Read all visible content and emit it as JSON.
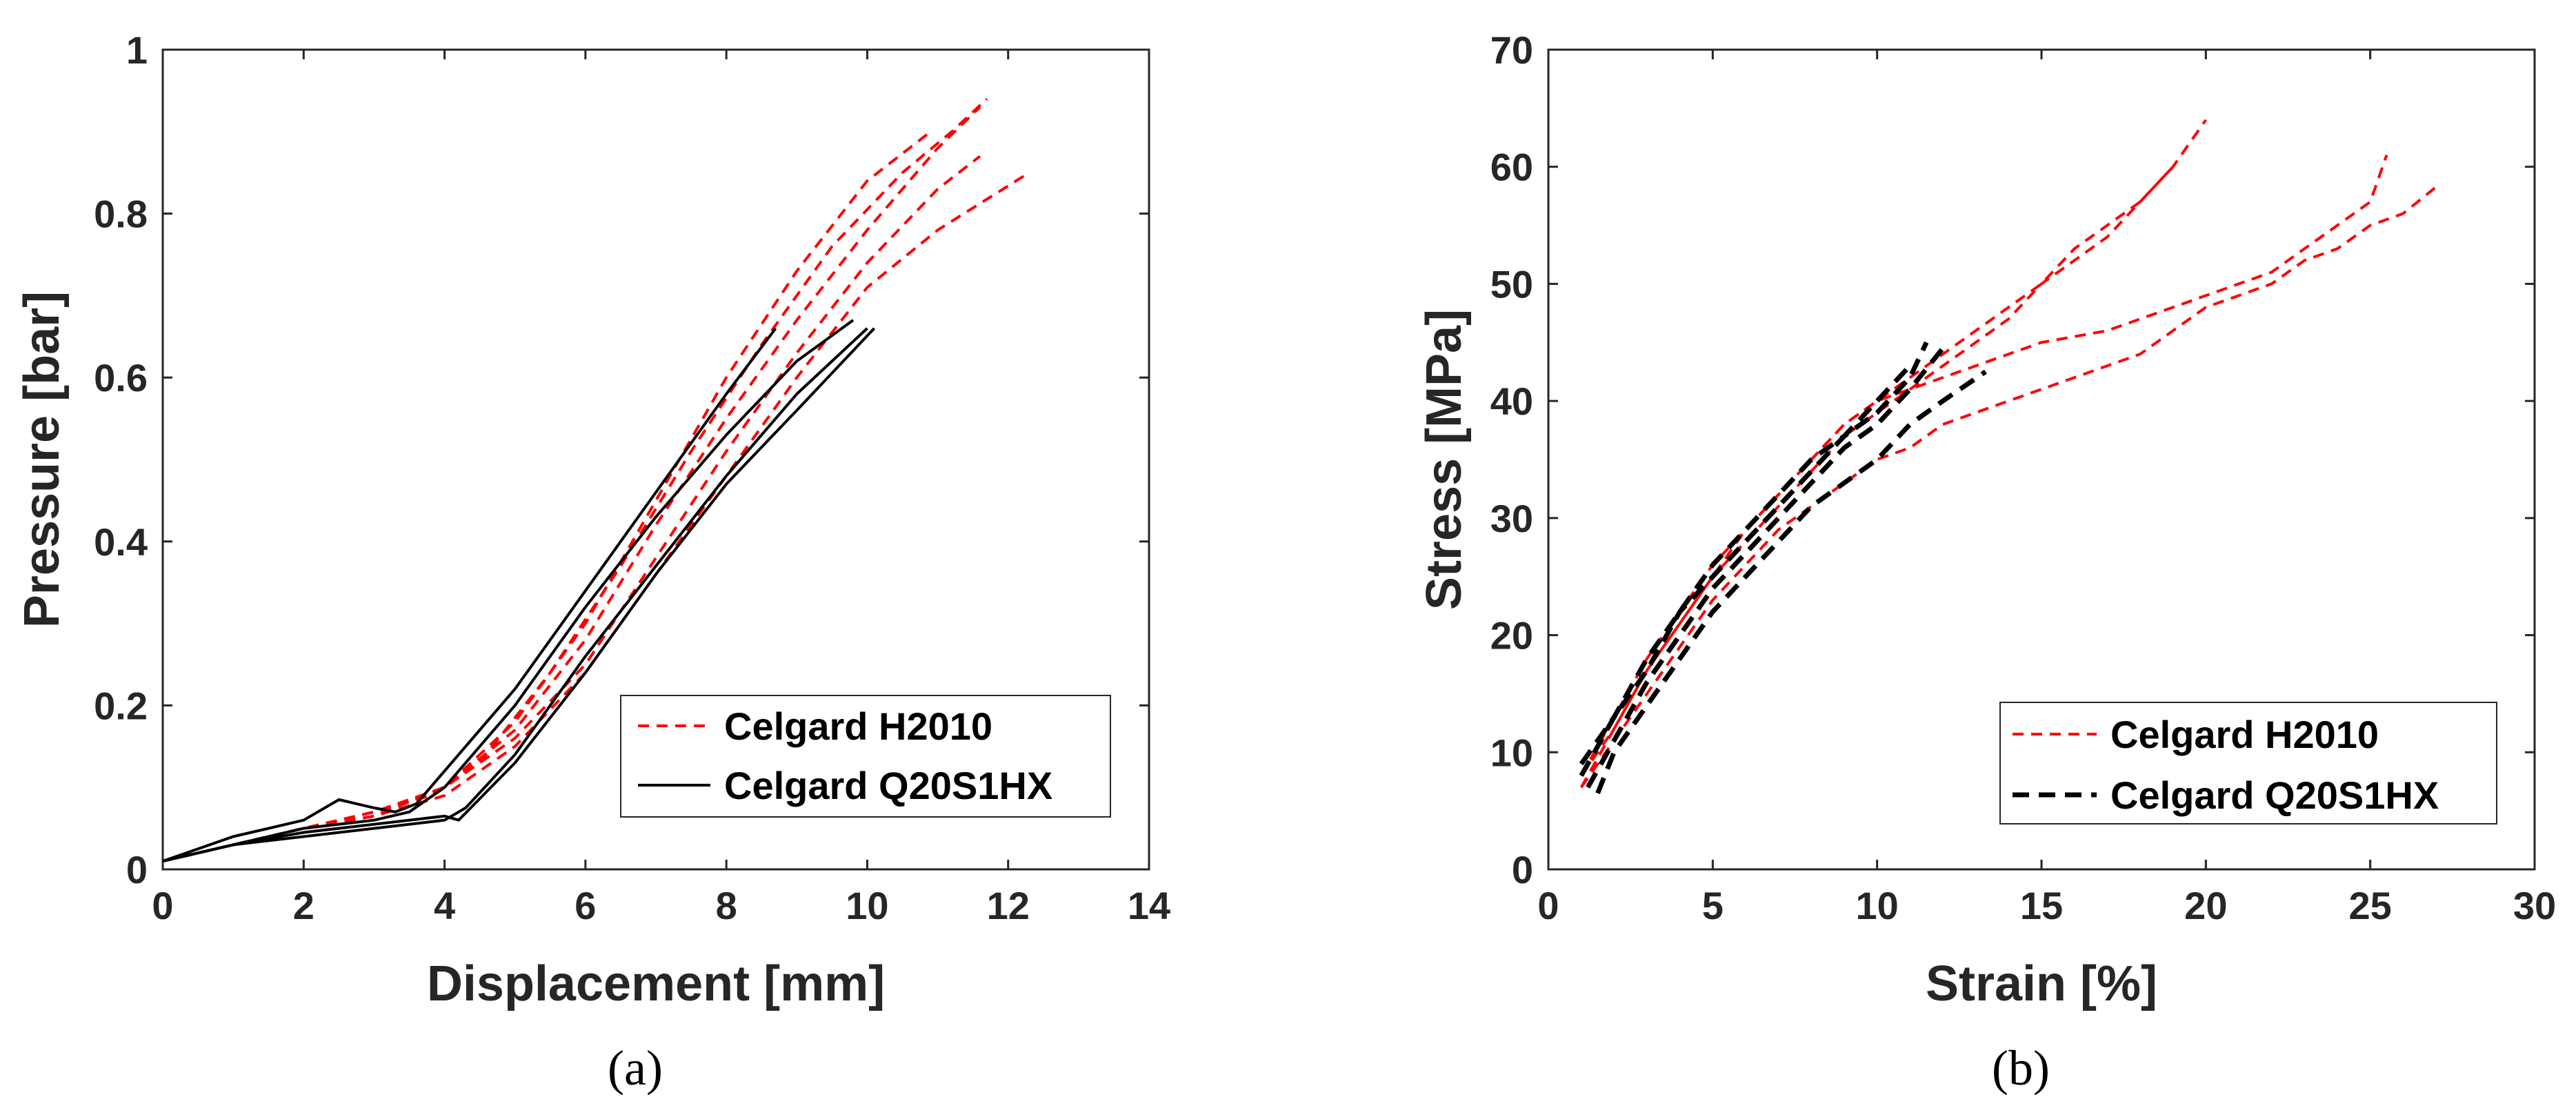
{
  "colors": {
    "h2010": "#ff0000",
    "q20": "#000000"
  },
  "chart_data": [
    {
      "type": "line",
      "panel_label": "(a)",
      "xlabel": "Displacement [mm]",
      "ylabel": "Pressure [bar]",
      "xlim": [
        0,
        14
      ],
      "ylim": [
        0,
        1
      ],
      "xticks": [
        "0",
        "2",
        "4",
        "6",
        "8",
        "10",
        "12",
        "14"
      ],
      "yticks": [
        "0",
        "0.2",
        "0.4",
        "0.6",
        "0.8",
        "1"
      ],
      "legend": {
        "position": "lower-right",
        "entries": [
          "Celgard H2010",
          "Celgard Q20S1HX"
        ]
      },
      "series": [
        {
          "name": "Celgard H2010",
          "group": 0,
          "dashed": true,
          "x": [
            0,
            1,
            2,
            3,
            3.8,
            4.5,
            5.5,
            6.5,
            7.5,
            8.5,
            9.5,
            10.5,
            11.2,
            11.7
          ],
          "y": [
            0.01,
            0.03,
            0.05,
            0.07,
            0.09,
            0.13,
            0.24,
            0.37,
            0.51,
            0.64,
            0.76,
            0.85,
            0.9,
            0.94
          ]
        },
        {
          "name": "Celgard H2010",
          "group": 0,
          "dashed": true,
          "x": [
            0,
            1,
            2,
            3,
            4,
            5,
            6,
            7,
            8,
            9,
            10,
            11,
            11.6
          ],
          "y": [
            0.01,
            0.03,
            0.05,
            0.065,
            0.1,
            0.17,
            0.28,
            0.42,
            0.55,
            0.67,
            0.78,
            0.88,
            0.93
          ]
        },
        {
          "name": "Celgard H2010",
          "group": 0,
          "dashed": true,
          "x": [
            0,
            1,
            2,
            3,
            4,
            5,
            6,
            7,
            8,
            9,
            10,
            11,
            11.6
          ],
          "y": [
            0.01,
            0.03,
            0.05,
            0.07,
            0.1,
            0.16,
            0.25,
            0.38,
            0.51,
            0.63,
            0.74,
            0.83,
            0.87
          ]
        },
        {
          "name": "Celgard H2010",
          "group": 0,
          "dashed": true,
          "x": [
            0,
            1,
            2,
            3,
            4,
            5,
            6,
            7,
            8,
            9,
            10,
            11,
            12.3
          ],
          "y": [
            0.01,
            0.03,
            0.05,
            0.065,
            0.09,
            0.15,
            0.24,
            0.36,
            0.48,
            0.6,
            0.71,
            0.78,
            0.85
          ]
        },
        {
          "name": "Celgard H2010",
          "group": 0,
          "dashed": true,
          "x": [
            0,
            1,
            2,
            3,
            4,
            5,
            6,
            7,
            8,
            9,
            10,
            10.9
          ],
          "y": [
            0.01,
            0.03,
            0.05,
            0.07,
            0.1,
            0.18,
            0.3,
            0.45,
            0.6,
            0.73,
            0.84,
            0.9
          ]
        },
        {
          "name": "Celgard Q20S1HX",
          "group": 1,
          "dashed": false,
          "x": [
            0,
            1,
            2,
            2.5,
            3,
            3.3,
            3.6,
            4,
            5,
            6,
            7,
            8,
            8.7
          ],
          "y": [
            0.01,
            0.04,
            0.06,
            0.085,
            0.075,
            0.07,
            0.08,
            0.12,
            0.22,
            0.34,
            0.46,
            0.58,
            0.66
          ]
        },
        {
          "name": "Celgard Q20S1HX",
          "group": 1,
          "dashed": false,
          "x": [
            0,
            1,
            2,
            3,
            3.5,
            4,
            5,
            6,
            7,
            8,
            9,
            9.8
          ],
          "y": [
            0.01,
            0.03,
            0.05,
            0.06,
            0.07,
            0.1,
            0.2,
            0.32,
            0.43,
            0.53,
            0.62,
            0.67
          ]
        },
        {
          "name": "Celgard Q20S1HX",
          "group": 1,
          "dashed": false,
          "x": [
            0,
            1,
            2,
            3,
            4,
            4.3,
            5,
            6,
            7,
            8,
            9,
            10
          ],
          "y": [
            0.01,
            0.03,
            0.04,
            0.05,
            0.06,
            0.075,
            0.14,
            0.26,
            0.37,
            0.48,
            0.58,
            0.66
          ]
        },
        {
          "name": "Celgard Q20S1HX",
          "group": 1,
          "dashed": false,
          "x": [
            0,
            1,
            2,
            3,
            4,
            4.2,
            5,
            6,
            7,
            8,
            9,
            10.1
          ],
          "y": [
            0.01,
            0.03,
            0.045,
            0.055,
            0.065,
            0.06,
            0.13,
            0.24,
            0.36,
            0.47,
            0.56,
            0.66
          ]
        }
      ]
    },
    {
      "type": "line",
      "panel_label": "(b)",
      "xlabel": "Strain [%]",
      "ylabel": "Stress [MPa]",
      "xlim": [
        0,
        30
      ],
      "ylim": [
        0,
        70
      ],
      "xticks": [
        "0",
        "5",
        "10",
        "15",
        "20",
        "25",
        "30"
      ],
      "yticks": [
        "0",
        "10",
        "20",
        "30",
        "40",
        "50",
        "60",
        "70"
      ],
      "legend": {
        "position": "lower-right",
        "entries": [
          "Celgard H2010",
          "Celgard Q20S1HX"
        ]
      },
      "series": [
        {
          "name": "Celgard H2010",
          "group": 0,
          "dashed": true,
          "x": [
            1,
            2,
            3,
            4,
            5,
            6,
            7,
            8,
            9,
            10,
            11,
            12,
            13,
            14,
            15,
            16,
            17,
            18,
            19,
            20
          ],
          "y": [
            8,
            13,
            18,
            22,
            26,
            29,
            32,
            35,
            38,
            40,
            42,
            44,
            46,
            48,
            50,
            53,
            55,
            57,
            60,
            64
          ]
        },
        {
          "name": "Celgard H2010",
          "group": 0,
          "dashed": true,
          "x": [
            1,
            2,
            3,
            4,
            5,
            6,
            7,
            8,
            9,
            10,
            11,
            12,
            13,
            14,
            15,
            16,
            17,
            18,
            19
          ],
          "y": [
            7,
            12,
            17,
            21,
            25,
            28,
            31,
            34,
            37,
            39,
            41,
            43,
            45,
            47,
            50,
            52,
            54,
            57,
            60
          ]
        },
        {
          "name": "Celgard H2010",
          "group": 0,
          "dashed": true,
          "x": [
            1,
            2,
            3,
            4,
            5,
            6,
            7,
            8,
            9,
            10,
            11,
            12,
            13,
            14,
            15,
            16,
            17,
            18,
            19,
            20,
            21,
            22,
            23,
            24,
            25,
            25.5
          ],
          "y": [
            8,
            12,
            17,
            21,
            25,
            29,
            32,
            35,
            38,
            40,
            41,
            42,
            43,
            44,
            45,
            45.5,
            46,
            47,
            48,
            49,
            50,
            51,
            53,
            55,
            57,
            61
          ]
        },
        {
          "name": "Celgard H2010",
          "group": 0,
          "dashed": true,
          "x": [
            1,
            2,
            3,
            4,
            5,
            6,
            7,
            8,
            9,
            10,
            11,
            12,
            13,
            14,
            15,
            16,
            17,
            18,
            19,
            20,
            21,
            22,
            23,
            24,
            25,
            26,
            27.1
          ],
          "y": [
            7,
            11,
            15,
            19,
            23,
            26,
            29,
            31,
            33,
            35,
            36,
            38,
            39,
            40,
            41,
            42,
            43,
            44,
            46,
            48,
            49,
            50,
            52,
            53,
            55,
            56,
            58.5
          ]
        },
        {
          "name": "Celgard Q20S1HX",
          "group": 1,
          "dashed": true,
          "x": [
            1,
            2,
            3,
            4,
            5,
            6,
            7,
            8,
            9,
            10,
            11,
            11.5
          ],
          "y": [
            8,
            13,
            17,
            22,
            25,
            28,
            31,
            34,
            37,
            39,
            42,
            45
          ]
        },
        {
          "name": "Celgard Q20S1HX",
          "group": 1,
          "dashed": true,
          "x": [
            1.2,
            2,
            3,
            4,
            5,
            6,
            7,
            8,
            9,
            10,
            11,
            12
          ],
          "y": [
            7,
            11,
            16,
            20,
            24,
            27,
            30,
            33,
            36,
            38,
            41,
            44.5
          ]
        },
        {
          "name": "Celgard Q20S1HX",
          "group": 1,
          "dashed": true,
          "x": [
            1.5,
            2,
            3,
            4,
            5,
            6,
            7,
            8,
            9,
            10,
            11,
            12,
            13.3
          ],
          "y": [
            6.5,
            10,
            14,
            18,
            22,
            25,
            28,
            31,
            33,
            35,
            38,
            40,
            42.5
          ]
        },
        {
          "name": "Celgard Q20S1HX",
          "group": 1,
          "dashed": true,
          "x": [
            1,
            2,
            3,
            4,
            5,
            6,
            7,
            8,
            9,
            10,
            11
          ],
          "y": [
            9,
            13,
            18,
            22,
            26,
            29,
            32,
            35,
            37,
            40,
            43
          ]
        }
      ]
    }
  ]
}
